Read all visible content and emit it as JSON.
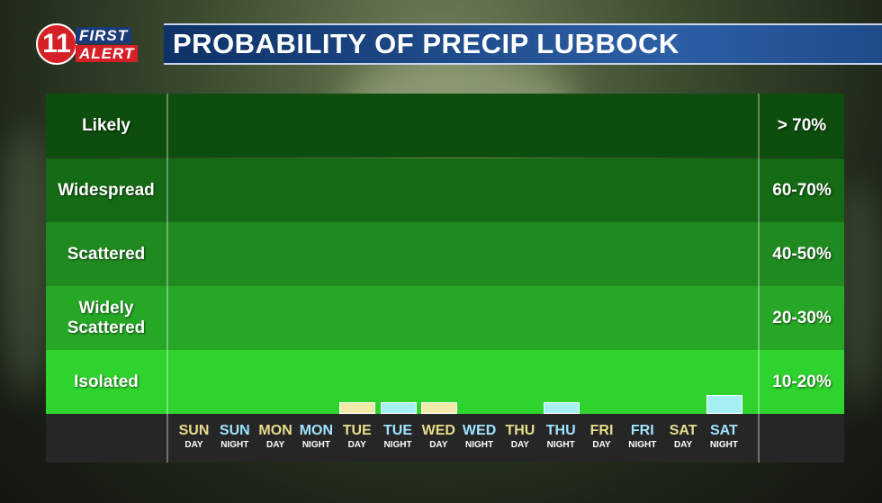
{
  "header": {
    "logo_number": "11",
    "logo_word1": "FIRST",
    "logo_word2": "ALERT",
    "title": "PROBABILITY OF PRECIP LUBBOCK"
  },
  "colors": {
    "band_likely": "#0d4d0d",
    "band_widespread": "#156a15",
    "band_scattered": "#1f8a1f",
    "band_widely": "#26a826",
    "band_isolated": "#2ed32e",
    "day_bar": "#f3e9a8",
    "night_bar": "#a6f0f5"
  },
  "chart_data": {
    "type": "bar",
    "title": "PROBABILITY OF PRECIP LUBBOCK",
    "bands": [
      {
        "label": "Likely",
        "range": "> 70%"
      },
      {
        "label": "Widespread",
        "range": "60-70%"
      },
      {
        "label": "Scattered",
        "range": "40-50%"
      },
      {
        "label": "Widely\nScattered",
        "range": "20-30%"
      },
      {
        "label": "Isolated",
        "range": "10-20%"
      }
    ],
    "categories": [
      {
        "day": "SUN",
        "part": "DAY"
      },
      {
        "day": "SUN",
        "part": "NIGHT"
      },
      {
        "day": "MON",
        "part": "DAY"
      },
      {
        "day": "MON",
        "part": "NIGHT"
      },
      {
        "day": "TUE",
        "part": "DAY"
      },
      {
        "day": "TUE",
        "part": "NIGHT"
      },
      {
        "day": "WED",
        "part": "DAY"
      },
      {
        "day": "WED",
        "part": "NIGHT"
      },
      {
        "day": "THU",
        "part": "DAY"
      },
      {
        "day": "THU",
        "part": "NIGHT"
      },
      {
        "day": "FRI",
        "part": "DAY"
      },
      {
        "day": "FRI",
        "part": "NIGHT"
      },
      {
        "day": "SAT",
        "part": "DAY"
      },
      {
        "day": "SAT",
        "part": "NIGHT"
      }
    ],
    "values": [
      0,
      0,
      0,
      0,
      3,
      3,
      3,
      0,
      0,
      3,
      0,
      0,
      0,
      5
    ],
    "ylim": [
      0,
      70
    ],
    "grid": false,
    "legend": "none"
  }
}
